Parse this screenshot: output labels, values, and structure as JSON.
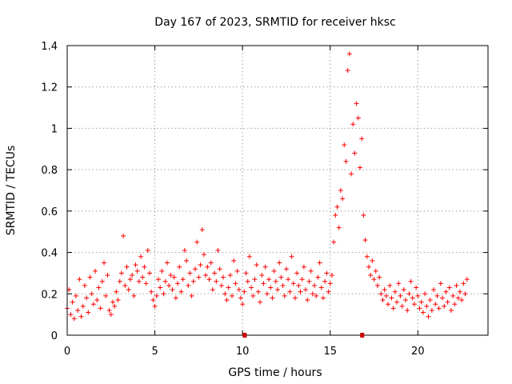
{
  "chart_data": {
    "type": "scatter",
    "title": "Day 167 of 2023, SRMTID for receiver hksc",
    "xlabel": "GPS time / hours",
    "ylabel": "SRMTID / TECUs",
    "xlim": [
      0,
      24
    ],
    "ylim": [
      0,
      1.4
    ],
    "xticks": [
      0,
      5,
      10,
      15,
      20
    ],
    "xtick_labels": [
      "0",
      "5",
      "10",
      "15",
      "20"
    ],
    "yticks": [
      0,
      0.2,
      0.4,
      0.6,
      0.8,
      1.0,
      1.2,
      1.4
    ],
    "ytick_labels": [
      "0",
      "0.2",
      "0.4",
      "0.6",
      "0.8",
      "1",
      "1.2",
      "1.4"
    ],
    "grid": true,
    "marker": "+",
    "color": "#ff0000",
    "x_axis_markers": [
      10.1,
      16.8
    ],
    "series": [
      {
        "name": "SRMTID",
        "x": [
          0.0,
          0.1,
          0.2,
          0.3,
          0.4,
          0.5,
          0.6,
          0.7,
          0.8,
          0.9,
          1.0,
          1.1,
          1.2,
          1.3,
          1.4,
          1.5,
          1.6,
          1.7,
          1.8,
          1.9,
          2.0,
          2.1,
          2.2,
          2.3,
          2.4,
          2.5,
          2.6,
          2.7,
          2.8,
          2.9,
          3.0,
          3.1,
          3.2,
          3.3,
          3.4,
          3.5,
          3.6,
          3.7,
          3.8,
          3.9,
          4.0,
          4.1,
          4.2,
          4.3,
          4.4,
          4.5,
          4.6,
          4.7,
          4.8,
          4.9,
          5.0,
          5.1,
          5.2,
          5.3,
          5.4,
          5.5,
          5.6,
          5.7,
          5.8,
          5.9,
          6.0,
          6.1,
          6.2,
          6.3,
          6.4,
          6.5,
          6.6,
          6.7,
          6.8,
          6.9,
          7.0,
          7.1,
          7.2,
          7.3,
          7.4,
          7.5,
          7.6,
          7.7,
          7.8,
          7.9,
          8.0,
          8.1,
          8.2,
          8.3,
          8.4,
          8.5,
          8.6,
          8.7,
          8.8,
          8.9,
          9.0,
          9.1,
          9.2,
          9.3,
          9.4,
          9.5,
          9.6,
          9.7,
          9.8,
          9.9,
          10.0,
          10.1,
          10.2,
          10.3,
          10.4,
          10.5,
          10.6,
          10.7,
          10.8,
          10.9,
          11.0,
          11.1,
          11.2,
          11.3,
          11.4,
          11.5,
          11.6,
          11.7,
          11.8,
          11.9,
          12.0,
          12.1,
          12.2,
          12.3,
          12.4,
          12.5,
          12.6,
          12.7,
          12.8,
          12.9,
          13.0,
          13.1,
          13.2,
          13.3,
          13.4,
          13.5,
          13.6,
          13.7,
          13.8,
          13.9,
          14.0,
          14.1,
          14.2,
          14.3,
          14.4,
          14.5,
          14.6,
          14.7,
          14.8,
          14.9,
          15.0,
          15.1,
          15.2,
          15.3,
          15.4,
          15.5,
          15.6,
          15.7,
          15.8,
          15.9,
          16.0,
          16.1,
          16.2,
          16.3,
          16.4,
          16.5,
          16.6,
          16.7,
          16.8,
          16.9,
          17.0,
          17.1,
          17.2,
          17.3,
          17.4,
          17.5,
          17.6,
          17.7,
          17.8,
          17.9,
          18.0,
          18.1,
          18.2,
          18.3,
          18.4,
          18.5,
          18.6,
          18.7,
          18.8,
          18.9,
          19.0,
          19.1,
          19.2,
          19.3,
          19.4,
          19.5,
          19.6,
          19.7,
          19.8,
          19.9,
          20.0,
          20.1,
          20.2,
          20.3,
          20.4,
          20.5,
          20.6,
          20.7,
          20.8,
          20.9,
          21.0,
          21.1,
          21.2,
          21.3,
          21.4,
          21.5,
          21.6,
          21.7,
          21.8,
          21.9,
          22.0,
          22.1,
          22.2,
          22.3,
          22.4,
          22.5,
          22.6,
          22.7,
          22.8
        ],
        "y": [
          0.13,
          0.22,
          0.1,
          0.16,
          0.08,
          0.19,
          0.12,
          0.27,
          0.09,
          0.14,
          0.24,
          0.18,
          0.11,
          0.28,
          0.2,
          0.15,
          0.31,
          0.17,
          0.23,
          0.13,
          0.26,
          0.35,
          0.19,
          0.29,
          0.12,
          0.1,
          0.16,
          0.14,
          0.21,
          0.17,
          0.26,
          0.3,
          0.48,
          0.24,
          0.33,
          0.22,
          0.27,
          0.29,
          0.19,
          0.34,
          0.31,
          0.26,
          0.38,
          0.28,
          0.33,
          0.25,
          0.41,
          0.3,
          0.21,
          0.17,
          0.14,
          0.19,
          0.27,
          0.23,
          0.31,
          0.2,
          0.26,
          0.35,
          0.24,
          0.29,
          0.22,
          0.28,
          0.18,
          0.25,
          0.33,
          0.21,
          0.27,
          0.41,
          0.36,
          0.24,
          0.3,
          0.19,
          0.26,
          0.32,
          0.45,
          0.28,
          0.34,
          0.51,
          0.39,
          0.29,
          0.33,
          0.27,
          0.35,
          0.22,
          0.3,
          0.26,
          0.41,
          0.32,
          0.24,
          0.28,
          0.2,
          0.17,
          0.23,
          0.29,
          0.19,
          0.36,
          0.25,
          0.31,
          0.22,
          0.18,
          0.15,
          0.21,
          0.3,
          0.26,
          0.38,
          0.23,
          0.19,
          0.27,
          0.34,
          0.21,
          0.16,
          0.29,
          0.25,
          0.33,
          0.2,
          0.27,
          0.23,
          0.18,
          0.31,
          0.26,
          0.22,
          0.35,
          0.28,
          0.24,
          0.19,
          0.32,
          0.27,
          0.21,
          0.38,
          0.25,
          0.18,
          0.3,
          0.24,
          0.21,
          0.27,
          0.33,
          0.22,
          0.17,
          0.26,
          0.31,
          0.2,
          0.24,
          0.19,
          0.28,
          0.35,
          0.23,
          0.18,
          0.26,
          0.3,
          0.21,
          0.25,
          0.29,
          0.45,
          0.58,
          0.62,
          0.52,
          0.7,
          0.66,
          0.92,
          0.84,
          1.28,
          1.36,
          0.78,
          1.02,
          0.88,
          1.12,
          1.05,
          0.81,
          0.95,
          0.58,
          0.46,
          0.38,
          0.33,
          0.29,
          0.36,
          0.27,
          0.31,
          0.24,
          0.28,
          0.2,
          0.17,
          0.22,
          0.19,
          0.15,
          0.24,
          0.18,
          0.13,
          0.21,
          0.16,
          0.25,
          0.19,
          0.14,
          0.22,
          0.17,
          0.12,
          0.2,
          0.26,
          0.18,
          0.15,
          0.23,
          0.19,
          0.13,
          0.16,
          0.11,
          0.2,
          0.14,
          0.09,
          0.17,
          0.12,
          0.22,
          0.15,
          0.19,
          0.13,
          0.25,
          0.18,
          0.14,
          0.21,
          0.16,
          0.23,
          0.12,
          0.19,
          0.15,
          0.24,
          0.18,
          0.21,
          0.17,
          0.25,
          0.2,
          0.27
        ]
      }
    ]
  }
}
